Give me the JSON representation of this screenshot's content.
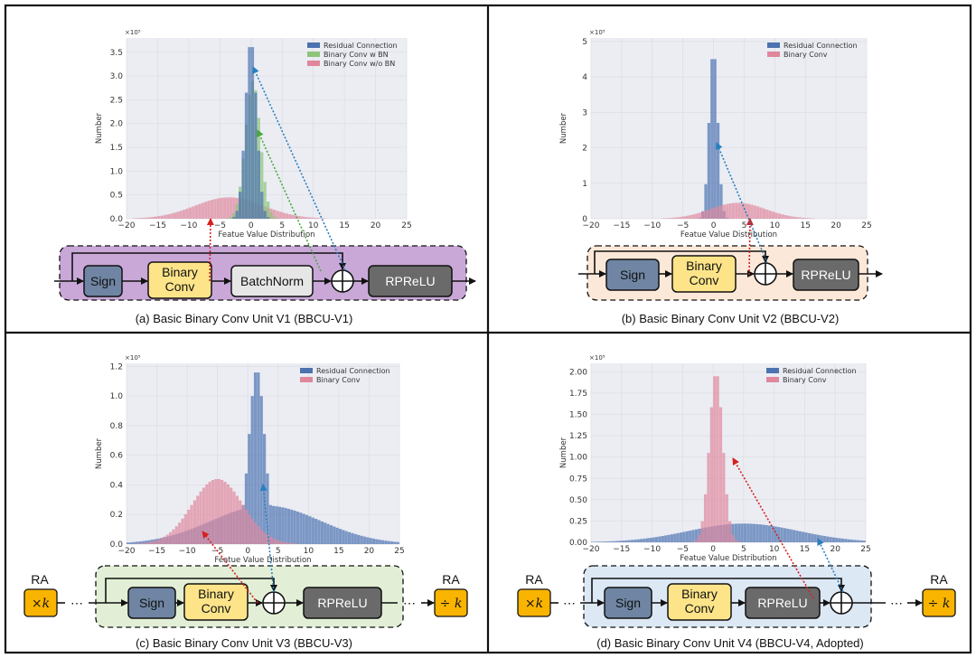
{
  "panels": [
    {
      "caption": "(a) Basic Binary Conv Unit V1 (BBCU-V1)",
      "chart_data": {
        "type": "bar",
        "xlim": [
          -20,
          25
        ],
        "xticks": [
          -20,
          -15,
          -10,
          -5,
          0,
          5,
          10,
          15,
          20,
          25
        ],
        "ylim": [
          0,
          3.8
        ],
        "yticks": [
          0.0,
          0.5,
          1.0,
          1.5,
          2.0,
          2.5,
          3.0,
          3.5
        ],
        "ytick_labels": [
          "0.0",
          "0.5",
          "1.0",
          "1.5",
          "2.0",
          "2.5",
          "3.0",
          "3.5"
        ],
        "multiplier": "×10⁵",
        "xlabel": "Featue Value Distribution",
        "ylabel": "Number",
        "legend_position": "top-right",
        "series": [
          {
            "name": "Binary Conv w/o BN",
            "color": "#e0879c",
            "shape": "gaussian",
            "center": -3.5,
            "width": 5.5,
            "peak": 0.45
          },
          {
            "name": "Binary Conv w BN",
            "color": "#8cc57a",
            "shape": "gaussian",
            "center": 0.3,
            "width": 1.2,
            "peak": 2.9
          },
          {
            "name": "Residual Connection",
            "color": "#4c72b0",
            "shape": "gaussian",
            "center": 0,
            "width": 0.9,
            "peak": 3.75
          }
        ]
      },
      "diagram": {
        "blocks": [
          "Sign",
          "Binary\nConv",
          "BatchNorm",
          "RPReLU"
        ],
        "plus": "+"
      }
    },
    {
      "caption": "(b) Basic Binary Conv Unit V2 (BBCU-V2)",
      "chart_data": {
        "type": "bar",
        "xlim": [
          -20,
          25
        ],
        "xticks": [
          -20,
          -15,
          -10,
          -5,
          0,
          5,
          10,
          15,
          20,
          25
        ],
        "ylim": [
          0,
          5.1
        ],
        "yticks": [
          0,
          1,
          2,
          3,
          4,
          5
        ],
        "ytick_labels": [
          "0",
          "1",
          "2",
          "3",
          "4",
          "5"
        ],
        "multiplier": "×10⁵",
        "xlabel": "Featue Value Distribution",
        "ylabel": "Number",
        "legend_position": "top-right",
        "series": [
          {
            "name": "Residual Connection",
            "color": "#4c72b0",
            "shape": "gaussian",
            "center": 0,
            "width": 0.7,
            "peak": 4.8
          },
          {
            "name": "Binary Conv",
            "color": "#e0879c",
            "shape": "gaussian",
            "center": 4,
            "width": 4.5,
            "peak": 0.45
          }
        ]
      },
      "diagram": {
        "blocks": [
          "Sign",
          "Binary\nConv",
          "RPReLU"
        ],
        "plus": "+"
      }
    },
    {
      "caption": "(c) Basic Binary Conv Unit V3 (BBCU-V3)",
      "chart_data": {
        "type": "bar",
        "xlim": [
          -20,
          25
        ],
        "xticks": [
          -20,
          -15,
          -10,
          -5,
          0,
          5,
          10,
          15,
          20,
          25
        ],
        "ylim": [
          0,
          1.22
        ],
        "yticks": [
          0.0,
          0.2,
          0.4,
          0.6,
          0.8,
          1.0,
          1.2
        ],
        "ytick_labels": [
          "0.0",
          "0.2",
          "0.4",
          "0.6",
          "0.8",
          "1.0",
          "1.2"
        ],
        "multiplier": "×10⁵",
        "xlabel": "Featue Value Distribution",
        "ylabel": "Number",
        "legend_position": "top-right",
        "series": [
          {
            "name": "Residual Connection",
            "color": "#4c72b0",
            "shape": "peak-tail",
            "center": 1.5,
            "width": 1.3,
            "peak": 1.18,
            "tail_peak": 0.26,
            "tail_center": 3,
            "tail_width": 9
          },
          {
            "name": "Binary Conv",
            "color": "#e0879c",
            "shape": "gaussian",
            "center": -5,
            "width": 4.2,
            "peak": 0.44
          }
        ]
      },
      "diagram": {
        "blocks": [
          "Sign",
          "Binary\nConv",
          "RPReLU"
        ],
        "plus": "+",
        "ra_left_label": "RA",
        "ra_left_op": "×k",
        "ra_right_label": "RA",
        "ra_right_op": "÷ k",
        "ellipsis": "⋯"
      }
    },
    {
      "caption": "(d) Basic Binary Conv Unit V4 (BBCU-V4, Adopted)",
      "chart_data": {
        "type": "bar",
        "xlim": [
          -20,
          25
        ],
        "xticks": [
          -20,
          -15,
          -10,
          -5,
          0,
          5,
          10,
          15,
          20,
          25
        ],
        "ylim": [
          0,
          2.1
        ],
        "yticks": [
          0.0,
          0.25,
          0.5,
          0.75,
          1.0,
          1.25,
          1.5,
          1.75,
          2.0
        ],
        "ytick_labels": [
          "0.00",
          "0.25",
          "0.50",
          "0.75",
          "1.00",
          "1.25",
          "1.50",
          "1.75",
          "2.00"
        ],
        "multiplier": "×10⁵",
        "xlabel": "Featue Value Distribution",
        "ylabel": "Number",
        "legend_position": "top-right",
        "series": [
          {
            "name": "Residual Connection",
            "color": "#4c72b0",
            "shape": "gaussian",
            "center": 5,
            "width": 9,
            "peak": 0.22
          },
          {
            "name": "Binary Conv",
            "color": "#e0879c",
            "shape": "gaussian",
            "center": 0.5,
            "width": 1.1,
            "peak": 2.0
          }
        ]
      },
      "diagram": {
        "blocks": [
          "Sign",
          "Binary\nConv",
          "RPReLU"
        ],
        "plus": "+",
        "ra_left_label": "RA",
        "ra_left_op": "×k",
        "ra_right_label": "RA",
        "ra_right_op": "÷ k",
        "ellipsis": "⋯"
      }
    }
  ],
  "colors": {
    "sign": "#6f85a3",
    "binary_conv": "#fde489",
    "batchnorm": "#e6e6e6",
    "rprelu": "#6a6a6a",
    "ra": "#f9b400",
    "bg_a": "#c9a8d8",
    "bg_b": "#fce8d8",
    "bg_c": "#e2efd6",
    "bg_d": "#dde8f5",
    "arrow_red": "#d62020",
    "arrow_green": "#4aa83a",
    "arrow_blue": "#2a7fc0"
  }
}
